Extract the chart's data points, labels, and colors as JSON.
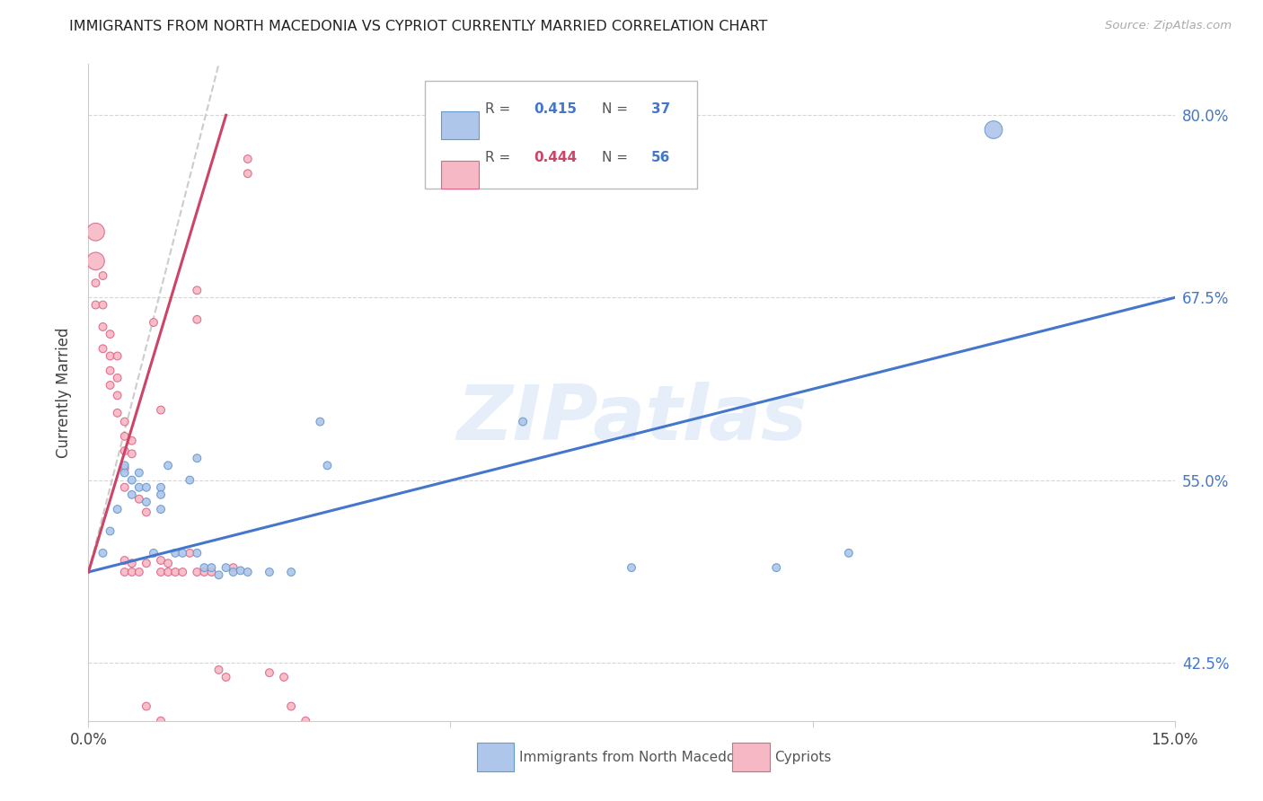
{
  "title": "IMMIGRANTS FROM NORTH MACEDONIA VS CYPRIOT CURRENTLY MARRIED CORRELATION CHART",
  "source": "Source: ZipAtlas.com",
  "ylabel": "Currently Married",
  "ylabel_ticks": [
    "80.0%",
    "67.5%",
    "55.0%",
    "42.5%"
  ],
  "y_tick_values": [
    0.8,
    0.675,
    0.55,
    0.425
  ],
  "xmin": 0.0,
  "xmax": 0.15,
  "ymin": 0.385,
  "ymax": 0.835,
  "legend_blue_R": "0.415",
  "legend_blue_N": "37",
  "legend_pink_R": "0.444",
  "legend_pink_N": "56",
  "blue_fill": "#aec6ea",
  "pink_fill": "#f5b8c4",
  "blue_edge": "#6699cc",
  "pink_edge": "#dd6688",
  "blue_line_color": "#4477cc",
  "pink_line_color": "#cc4466",
  "diag_line_color": "#cccccc",
  "watermark": "ZIPatlas",
  "blue_scatter": [
    [
      0.002,
      0.5
    ],
    [
      0.003,
      0.515
    ],
    [
      0.004,
      0.53
    ],
    [
      0.005,
      0.555
    ],
    [
      0.005,
      0.56
    ],
    [
      0.006,
      0.54
    ],
    [
      0.006,
      0.55
    ],
    [
      0.007,
      0.555
    ],
    [
      0.007,
      0.545
    ],
    [
      0.008,
      0.545
    ],
    [
      0.008,
      0.535
    ],
    [
      0.009,
      0.5
    ],
    [
      0.01,
      0.545
    ],
    [
      0.01,
      0.54
    ],
    [
      0.01,
      0.53
    ],
    [
      0.011,
      0.56
    ],
    [
      0.012,
      0.5
    ],
    [
      0.013,
      0.5
    ],
    [
      0.014,
      0.55
    ],
    [
      0.015,
      0.565
    ],
    [
      0.015,
      0.5
    ],
    [
      0.016,
      0.49
    ],
    [
      0.017,
      0.49
    ],
    [
      0.018,
      0.485
    ],
    [
      0.019,
      0.49
    ],
    [
      0.02,
      0.487
    ],
    [
      0.021,
      0.488
    ],
    [
      0.022,
      0.487
    ],
    [
      0.025,
      0.487
    ],
    [
      0.028,
      0.487
    ],
    [
      0.032,
      0.59
    ],
    [
      0.033,
      0.56
    ],
    [
      0.06,
      0.59
    ],
    [
      0.075,
      0.49
    ],
    [
      0.095,
      0.49
    ],
    [
      0.105,
      0.5
    ],
    [
      0.125,
      0.79
    ]
  ],
  "pink_scatter": [
    [
      0.001,
      0.72
    ],
    [
      0.001,
      0.7
    ],
    [
      0.001,
      0.685
    ],
    [
      0.001,
      0.67
    ],
    [
      0.002,
      0.69
    ],
    [
      0.002,
      0.67
    ],
    [
      0.002,
      0.655
    ],
    [
      0.002,
      0.64
    ],
    [
      0.003,
      0.65
    ],
    [
      0.003,
      0.635
    ],
    [
      0.003,
      0.625
    ],
    [
      0.003,
      0.615
    ],
    [
      0.004,
      0.635
    ],
    [
      0.004,
      0.62
    ],
    [
      0.004,
      0.608
    ],
    [
      0.004,
      0.596
    ],
    [
      0.005,
      0.59
    ],
    [
      0.005,
      0.58
    ],
    [
      0.005,
      0.57
    ],
    [
      0.005,
      0.558
    ],
    [
      0.005,
      0.545
    ],
    [
      0.005,
      0.495
    ],
    [
      0.005,
      0.487
    ],
    [
      0.006,
      0.577
    ],
    [
      0.006,
      0.568
    ],
    [
      0.006,
      0.493
    ],
    [
      0.006,
      0.487
    ],
    [
      0.007,
      0.537
    ],
    [
      0.007,
      0.487
    ],
    [
      0.008,
      0.528
    ],
    [
      0.008,
      0.493
    ],
    [
      0.009,
      0.658
    ],
    [
      0.01,
      0.598
    ],
    [
      0.01,
      0.495
    ],
    [
      0.01,
      0.487
    ],
    [
      0.011,
      0.493
    ],
    [
      0.011,
      0.487
    ],
    [
      0.012,
      0.487
    ],
    [
      0.013,
      0.487
    ],
    [
      0.014,
      0.5
    ],
    [
      0.015,
      0.68
    ],
    [
      0.015,
      0.66
    ],
    [
      0.015,
      0.487
    ],
    [
      0.016,
      0.487
    ],
    [
      0.017,
      0.487
    ],
    [
      0.018,
      0.42
    ],
    [
      0.019,
      0.415
    ],
    [
      0.02,
      0.49
    ],
    [
      0.022,
      0.77
    ],
    [
      0.022,
      0.76
    ],
    [
      0.025,
      0.418
    ],
    [
      0.027,
      0.415
    ],
    [
      0.028,
      0.395
    ],
    [
      0.03,
      0.385
    ],
    [
      0.008,
      0.395
    ],
    [
      0.01,
      0.385
    ]
  ],
  "blue_scatter_sizes": [
    40,
    40,
    40,
    40,
    40,
    40,
    40,
    40,
    40,
    40,
    40,
    40,
    40,
    40,
    40,
    40,
    40,
    40,
    40,
    40,
    40,
    40,
    40,
    40,
    40,
    40,
    40,
    40,
    40,
    40,
    40,
    40,
    40,
    40,
    40,
    40,
    200
  ],
  "pink_scatter_sizes": [
    200,
    200,
    40,
    40,
    40,
    40,
    40,
    40,
    40,
    40,
    40,
    40,
    40,
    40,
    40,
    40,
    40,
    40,
    40,
    40,
    40,
    40,
    40,
    40,
    40,
    40,
    40,
    40,
    40,
    40,
    40,
    40,
    40,
    40,
    40,
    40,
    40,
    40,
    40,
    40,
    40,
    40,
    40,
    40,
    40,
    40,
    40,
    40,
    40,
    40,
    40,
    40,
    40,
    40,
    40,
    40
  ],
  "blue_line_x": [
    0.0,
    0.15
  ],
  "blue_line_y": [
    0.487,
    0.675
  ],
  "pink_line_x": [
    0.0,
    0.019
  ],
  "pink_line_y": [
    0.487,
    0.8
  ],
  "diag_line_x": [
    0.0,
    0.018
  ],
  "diag_line_y": [
    0.487,
    0.835
  ]
}
